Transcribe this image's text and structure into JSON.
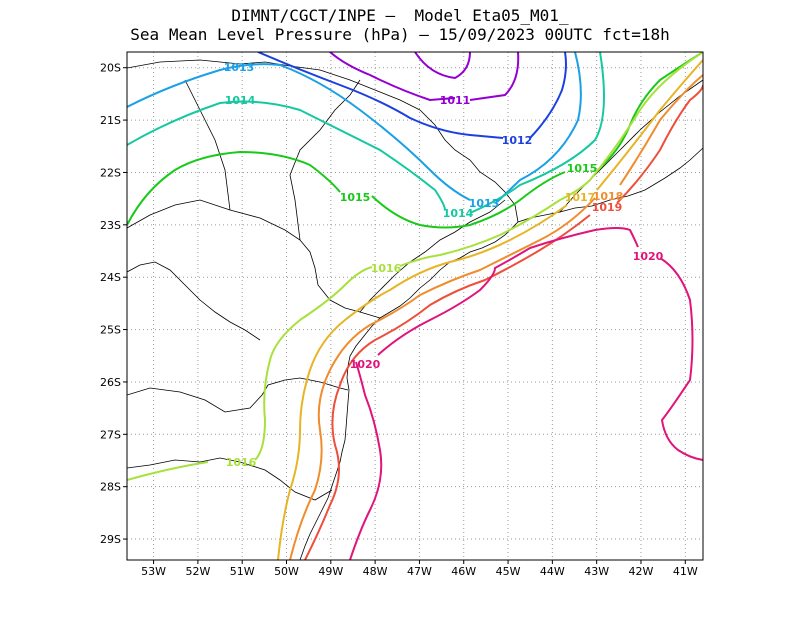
{
  "title_line1": "DIMNT/CGCT/INPE –  Model Eta05_M01_",
  "title_line2": "Sea Mean Level Pressure (hPa) – 15/09/2023 00UTC fct=18h",
  "chart_data": {
    "type": "contour-map",
    "x_ticks": [
      "53W",
      "52W",
      "51W",
      "50W",
      "49W",
      "48W",
      "47W",
      "46W",
      "45W",
      "44W",
      "43W",
      "42W",
      "41W"
    ],
    "y_ticks": [
      "20S",
      "21S",
      "22S",
      "23S",
      "24S",
      "25S",
      "26S",
      "27S",
      "28S",
      "29S"
    ],
    "lon_range": [
      -53.6,
      -40.6
    ],
    "lat_range": [
      -29.4,
      -19.7
    ],
    "grid": "dotted",
    "isobars": [
      {
        "level": "1011",
        "color": "#9400d3",
        "label": "1011"
      },
      {
        "level": "1012",
        "color": "#1c3fe0",
        "label": "1012"
      },
      {
        "level": "1013",
        "color": "#1aa0e6",
        "label": "1013"
      },
      {
        "level": "1014",
        "color": "#14c8a0",
        "label": "1014"
      },
      {
        "level": "1015",
        "color": "#19c919",
        "label": "1015"
      },
      {
        "level": "1016",
        "color": "#a8e03c",
        "label": "1016"
      },
      {
        "level": "1017",
        "color": "#e6b424",
        "label": "1017"
      },
      {
        "level": "1018",
        "color": "#f08c2c",
        "label": "1018"
      },
      {
        "level": "1019",
        "color": "#ee4e3c",
        "label": "1019"
      },
      {
        "level": "1020",
        "color": "#e0147a",
        "label": "1020"
      }
    ]
  }
}
